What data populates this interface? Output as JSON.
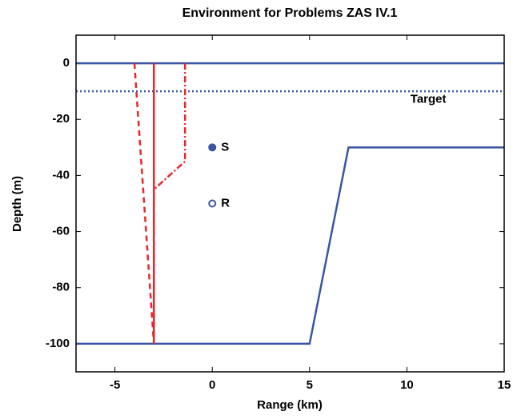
{
  "chart_data": {
    "type": "line",
    "title": "Environment for Problems ZAS IV.1",
    "xlabel": "Range (km)",
    "ylabel": "Depth (m)",
    "xlim": [
      -7,
      15
    ],
    "ylim": [
      -110,
      10
    ],
    "xticks": [
      -5,
      0,
      5,
      10,
      15
    ],
    "yticks": [
      0,
      -20,
      -40,
      -60,
      -80,
      -100
    ],
    "series": [
      {
        "color": "#3a55a4",
        "linestyle": "solid",
        "x": [
          -7,
          15
        ],
        "values": [
          0,
          0
        ]
      },
      {
        "name": "Target",
        "color": "#3a55a4",
        "linestyle": "dotted",
        "x": [
          -7,
          15
        ],
        "values": [
          -10,
          -10
        ]
      },
      {
        "color": "#3a55a4",
        "linestyle": "solid",
        "x": [
          -7,
          5,
          7,
          15
        ],
        "values": [
          -100,
          -100,
          -30,
          -30
        ]
      },
      {
        "color": "#e8262b",
        "linestyle": "solid",
        "x": [
          -3,
          -3
        ],
        "values": [
          0,
          -100
        ]
      },
      {
        "color": "#e8262b",
        "linestyle": "dashed",
        "x": [
          -4,
          -3
        ],
        "values": [
          0,
          -100
        ]
      },
      {
        "color": "#e8262b",
        "linestyle": "dashdot",
        "x": [
          -1.4,
          -1.4,
          -3,
          -3
        ],
        "values": [
          0,
          -35,
          -45,
          -100
        ]
      },
      {
        "name": "S",
        "color": "#3a55a4",
        "marker": "filled",
        "x": [
          0
        ],
        "values": [
          -30
        ]
      },
      {
        "name": "R",
        "color": "#3a55a4",
        "marker": "open",
        "x": [
          0
        ],
        "values": [
          -50
        ]
      }
    ],
    "annotations": [
      {
        "text": "Target",
        "x": 11.1,
        "y": -13
      }
    ]
  }
}
